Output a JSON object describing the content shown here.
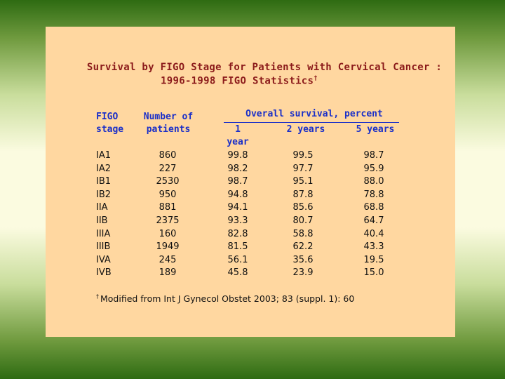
{
  "title": {
    "line1": "Survival by FIGO Stage for Patients with Cervical Cancer :",
    "line2": "1996-1998 FIGO Statistics",
    "dagger": "†"
  },
  "table": {
    "headers": {
      "stage_line1": "FIGO",
      "stage_line2": "stage",
      "patients_line1": "Number of",
      "patients_line2": "patients",
      "overall": "Overall survival, percent",
      "year1": "1 year",
      "year2": "2 years",
      "year5": "5 years"
    },
    "rows": [
      {
        "stage": "IA1",
        "patients": "860",
        "y1": "99.8",
        "y2": "99.5",
        "y5": "98.7"
      },
      {
        "stage": "IA2",
        "patients": "227",
        "y1": "98.2",
        "y2": "97.7",
        "y5": "95.9"
      },
      {
        "stage": "IB1",
        "patients": "2530",
        "y1": "98.7",
        "y2": "95.1",
        "y5": "88.0"
      },
      {
        "stage": "IB2",
        "patients": "950",
        "y1": "94.8",
        "y2": "87.8",
        "y5": "78.8"
      },
      {
        "stage": "IIA",
        "patients": "881",
        "y1": "94.1",
        "y2": "85.6",
        "y5": "68.8"
      },
      {
        "stage": "IIB",
        "patients": "2375",
        "y1": "93.3",
        "y2": "80.7",
        "y5": "64.7"
      },
      {
        "stage": "IIIA",
        "patients": "160",
        "y1": "82.8",
        "y2": "58.8",
        "y5": "40.4"
      },
      {
        "stage": "IIIB",
        "patients": "1949",
        "y1": "81.5",
        "y2": "62.2",
        "y5": "43.3"
      },
      {
        "stage": "IVA",
        "patients": "245",
        "y1": "56.1",
        "y2": "35.6",
        "y5": "19.5"
      },
      {
        "stage": "IVB",
        "patients": "189",
        "y1": "45.8",
        "y2": "23.9",
        "y5": "15.0"
      }
    ]
  },
  "footnote": {
    "dagger": "†",
    "text": "Modified from Int J Gynecol Obstet 2003; 83 (suppl. 1): 60"
  },
  "colors": {
    "card": "#ffd7a0",
    "title": "#8b1a1a",
    "header": "#1a2fc8",
    "body_text": "#111111"
  }
}
